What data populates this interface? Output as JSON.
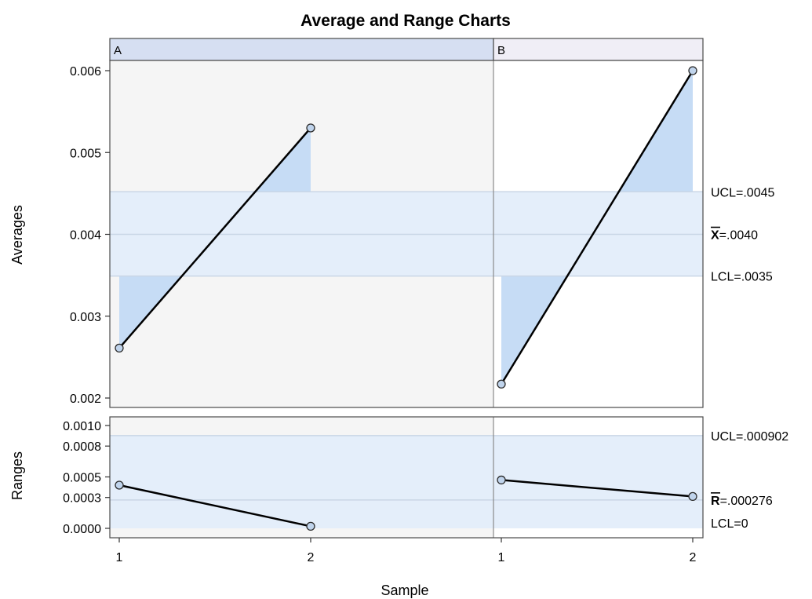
{
  "chart_data": {
    "type": "line",
    "title": "Average and Range Charts",
    "xlabel": "Sample",
    "panels": [
      {
        "name": "A",
        "header_color": "#d6dff2",
        "background": "#f5f5f5"
      },
      {
        "name": "B",
        "header_color": "#f0eef6",
        "background": "#ffffff"
      }
    ],
    "x_ticks": [
      "1",
      "2"
    ],
    "averages": {
      "ylabel": "Averages",
      "ylim": [
        0.00195,
        0.00611
      ],
      "y_ticks": [
        "0.002",
        "0.003",
        "0.004",
        "0.005",
        "0.006"
      ],
      "y_tick_values": [
        0.002,
        0.003,
        0.004,
        0.005,
        0.006
      ],
      "series": [
        {
          "name": "A",
          "x": [
            1,
            2
          ],
          "values": [
            0.00261,
            0.0053
          ]
        },
        {
          "name": "B",
          "x": [
            1,
            2
          ],
          "values": [
            0.00217,
            0.006
          ]
        }
      ],
      "center": 0.004,
      "ucl": 0.00452,
      "lcl": 0.00349,
      "ucl_text": "UCL=.0045",
      "center_symbol": "X",
      "center_text": "=.0040",
      "lcl_text": "LCL=.0035"
    },
    "ranges": {
      "ylabel": "Ranges",
      "ylim": [
        -7e-05,
        0.00111
      ],
      "y_ticks": [
        "0.0010",
        "0.0008",
        "0.0005",
        "0.0003",
        "0.0000"
      ],
      "y_tick_values": [
        0.001,
        0.0008,
        0.0005,
        0.0003,
        0.0
      ],
      "series": [
        {
          "name": "A",
          "x": [
            1,
            2
          ],
          "values": [
            0.00042,
            2e-05
          ]
        },
        {
          "name": "B",
          "x": [
            1,
            2
          ],
          "values": [
            0.00047,
            0.00031
          ]
        }
      ],
      "center": 0.000276,
      "ucl": 0.000902,
      "lcl": 0,
      "ucl_text": "UCL=.000902",
      "center_symbol": "R",
      "center_text": "=.000276",
      "lcl_text": "LCL=0"
    },
    "colors": {
      "limit_band": "#e4eefa",
      "excursion_fill": "#c6dcf5",
      "line": "#000000",
      "marker_fill": "#c0d4ec",
      "ref_line": "#c9d6e6"
    }
  }
}
